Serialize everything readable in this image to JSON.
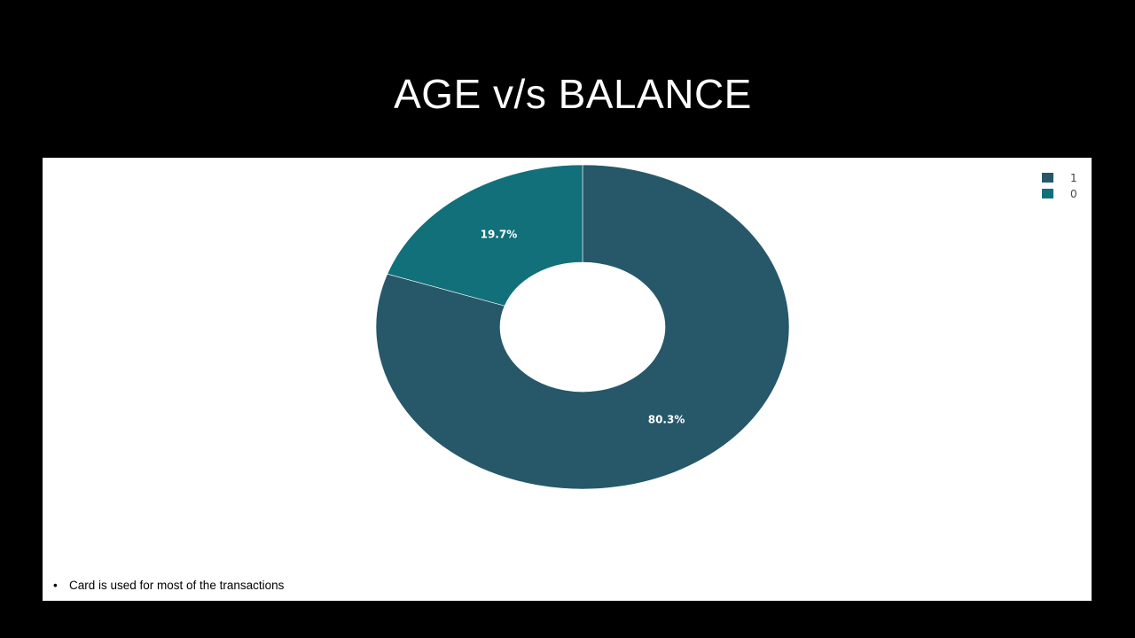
{
  "slide": {
    "title": "AGE v/s BALANCE",
    "note": "Card is used for most of the transactions"
  },
  "chart_data": {
    "type": "pie",
    "hole": true,
    "categories": [
      "1",
      "0"
    ],
    "values": [
      80.3,
      19.7
    ],
    "value_labels": [
      "80.3%",
      "19.7%"
    ],
    "colors": [
      "#265869",
      "#117079"
    ],
    "legend": {
      "entries": [
        "1",
        "0"
      ],
      "placement": "top-right"
    },
    "title": "",
    "xlabel": "",
    "ylabel": ""
  },
  "colors": {
    "background": "#000000",
    "panel": "#ffffff",
    "title_text": "#ffffff"
  }
}
